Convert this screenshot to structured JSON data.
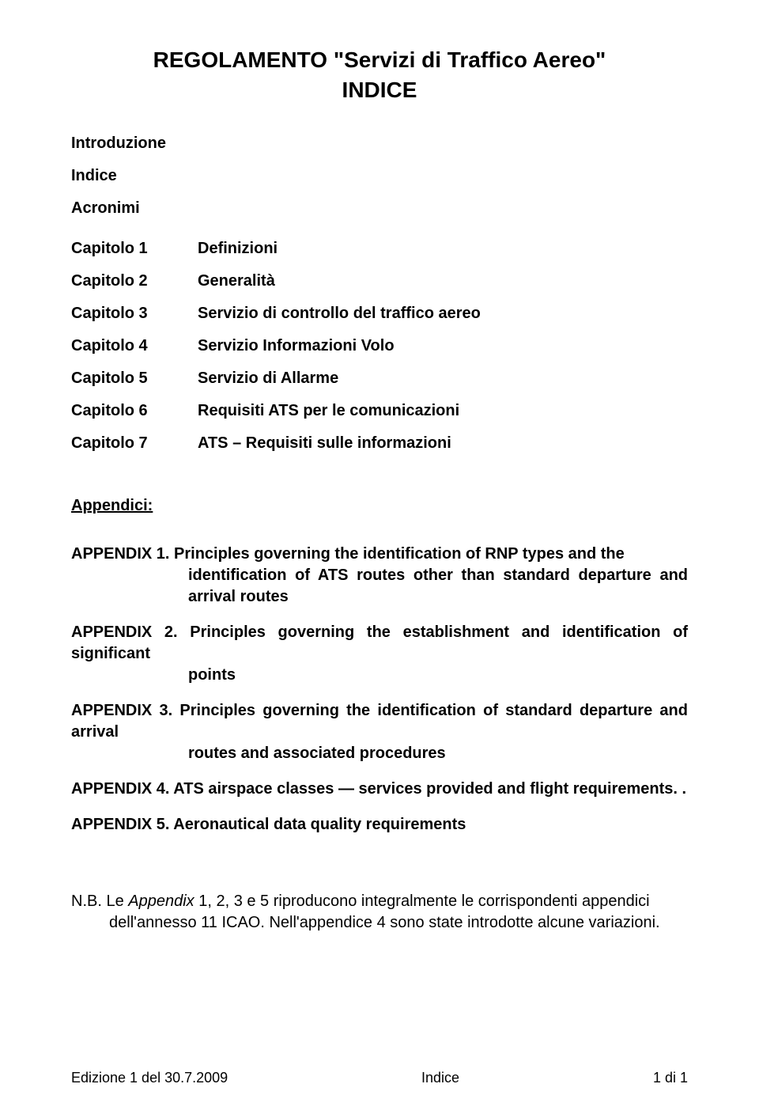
{
  "title": "REGOLAMENTO \"Servizi di Traffico Aereo\"",
  "subtitle": "INDICE",
  "top_items": [
    "Introduzione",
    "Indice",
    "Acronimi"
  ],
  "chapters": [
    {
      "label": "Capitolo 1",
      "value": "Definizioni"
    },
    {
      "label": "Capitolo 2",
      "value": "Generalità"
    },
    {
      "label": "Capitolo 3",
      "value": "Servizio di controllo del traffico aereo"
    },
    {
      "label": "Capitolo 4",
      "value": "Servizio Informazioni Volo"
    },
    {
      "label": "Capitolo 5",
      "value": "Servizio di Allarme"
    },
    {
      "label": "Capitolo 6",
      "value": "Requisiti ATS per le comunicazioni"
    },
    {
      "label": "Capitolo 7",
      "value": "ATS – Requisiti sulle informazioni"
    }
  ],
  "appendici_heading": "Appendici:",
  "appendices": [
    {
      "lead": "APPENDIX 1. Principles governing the identification of RNP types and the",
      "cont": [
        "identification of ATS routes other than standard departure and arrival routes"
      ]
    },
    {
      "lead": "APPENDIX 2. Principles governing the establishment and identification of significant",
      "cont": [
        "points"
      ]
    },
    {
      "lead": "APPENDIX 3. Principles governing the identification of standard departure and arrival",
      "cont": [
        "routes and associated procedures"
      ]
    },
    {
      "lead": "APPENDIX 4. ATS airspace classes — services provided and flight requirements. .",
      "cont": []
    },
    {
      "lead": "APPENDIX 5. Aeronautical data quality requirements",
      "cont": []
    }
  ],
  "nb": {
    "prefix": "N.B. ",
    "lead_plain_a": "Le ",
    "lead_italic": "Appendix",
    "lead_plain_b": " 1, 2, 3 e 5 riproducono integralmente le corrispondenti appendici",
    "cont": "dell'annesso 11 ICAO. Nell'appendice 4 sono state introdotte alcune variazioni."
  },
  "footer": {
    "left": "Edizione 1 del 30.7.2009",
    "center": "Indice",
    "right": "1 di 1"
  },
  "colors": {
    "background": "#ffffff",
    "text": "#000000"
  },
  "typography": {
    "title_fontsize": 28,
    "body_fontsize": 20,
    "footer_fontsize": 18,
    "font_family": "Arial"
  }
}
